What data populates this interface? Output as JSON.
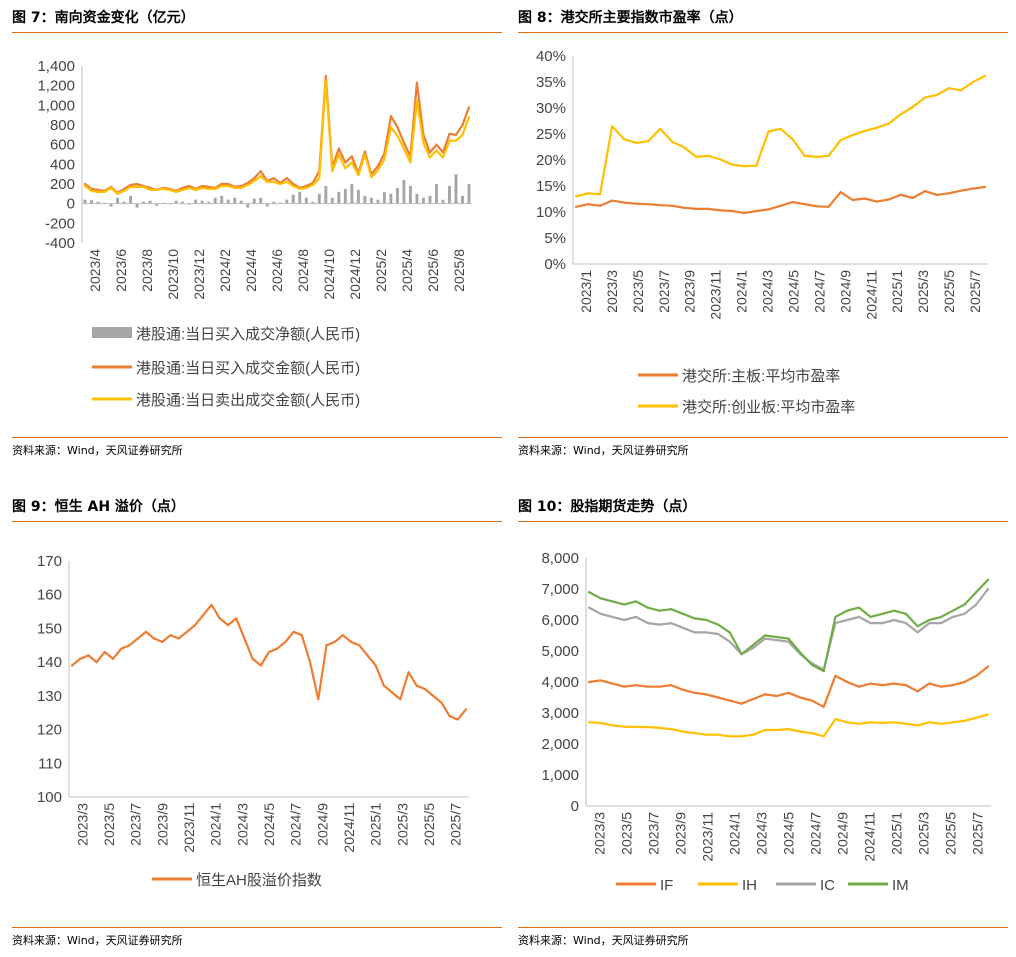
{
  "colors": {
    "accent": "#e46c0a",
    "orange": "#ed7d31",
    "yellow": "#ffc000",
    "gray": "#a6a6a6",
    "green": "#70ad47"
  },
  "fig7": {
    "title": "图 7：南向资金变化（亿元）",
    "source": "资料来源：Wind，天风证券研究所",
    "chart_data": {
      "type": "line",
      "ylim": [
        -400,
        1400
      ],
      "yticks": [
        "1,400",
        "1,200",
        "1,000",
        "800",
        "600",
        "400",
        "200",
        "0",
        "-200",
        "-400"
      ],
      "x_tick_labels": [
        "2023/4",
        "2023/6",
        "2023/8",
        "2023/10",
        "2023/12",
        "2024/2",
        "2024/4",
        "2024/6",
        "2024/8",
        "2024/10",
        "2024/12",
        "2025/2",
        "2025/4",
        "2025/6",
        "2025/8"
      ],
      "series": [
        {
          "name": "港股通:当日买入成交净额(人民币)",
          "type": "bar",
          "color": "#a6a6a6",
          "values": [
            40,
            35,
            20,
            10,
            -30,
            60,
            20,
            80,
            -40,
            20,
            30,
            -20,
            10,
            0,
            30,
            20,
            -10,
            40,
            30,
            20,
            60,
            80,
            40,
            60,
            30,
            -40,
            50,
            60,
            -30,
            20,
            10,
            40,
            90,
            120,
            60,
            20,
            100,
            180,
            60,
            120,
            150,
            200,
            140,
            80,
            60,
            40,
            120,
            100,
            160,
            240,
            180,
            100,
            60,
            80,
            200,
            40,
            180,
            300,
            80,
            200
          ]
        },
        {
          "name": "港股通:当日买入成交金额(人民币)",
          "color": "#ed7d31",
          "values": [
            200,
            150,
            140,
            130,
            170,
            110,
            150,
            190,
            200,
            180,
            160,
            140,
            160,
            150,
            130,
            160,
            180,
            150,
            180,
            170,
            160,
            200,
            200,
            170,
            180,
            210,
            260,
            330,
            230,
            260,
            210,
            260,
            200,
            160,
            180,
            210,
            330,
            1300,
            370,
            560,
            420,
            480,
            310,
            530,
            300,
            380,
            510,
            890,
            780,
            620,
            480,
            1230,
            700,
            520,
            600,
            520,
            710,
            700,
            800,
            980
          ]
        },
        {
          "name": "港股通:当日卖出成交金额(人民币)",
          "color": "#ffc000",
          "values": [
            180,
            130,
            120,
            120,
            160,
            100,
            130,
            170,
            170,
            170,
            140,
            140,
            150,
            140,
            120,
            140,
            160,
            140,
            160,
            150,
            150,
            180,
            180,
            160,
            160,
            190,
            230,
            280,
            220,
            220,
            200,
            220,
            180,
            150,
            160,
            190,
            260,
            1250,
            330,
            500,
            360,
            420,
            290,
            500,
            270,
            340,
            450,
            780,
            690,
            560,
            420,
            1050,
            620,
            470,
            540,
            470,
            640,
            640,
            700,
            880
          ]
        }
      ]
    }
  },
  "fig8": {
    "title": "图 8：港交所主要指数市盈率（点）",
    "source": "资料来源：Wind，天风证券研究所",
    "chart_data": {
      "type": "line",
      "ylim": [
        0,
        40
      ],
      "yticks": [
        "40%",
        "35%",
        "30%",
        "25%",
        "20%",
        "15%",
        "10%",
        "5%",
        "0%"
      ],
      "x_tick_labels": [
        "2023/1",
        "2023/3",
        "2023/5",
        "2023/7",
        "2023/9",
        "2023/11",
        "2024/1",
        "2024/3",
        "2024/5",
        "2024/7",
        "2024/9",
        "2024/11",
        "2025/1",
        "2025/3",
        "2025/5",
        "2025/7"
      ],
      "series": [
        {
          "name": "港交所:主板:平均市盈率",
          "color": "#ed7d31",
          "values": [
            11.0,
            11.5,
            11.2,
            12.2,
            11.8,
            11.6,
            11.5,
            11.3,
            11.2,
            10.8,
            10.6,
            10.6,
            10.3,
            10.2,
            9.8,
            10.2,
            10.5,
            11.2,
            11.9,
            11.5,
            11.1,
            11.0,
            13.8,
            12.3,
            12.6,
            12.0,
            12.4,
            13.3,
            12.7,
            14.0,
            13.3,
            13.6,
            14.1,
            14.5,
            14.8
          ]
        },
        {
          "name": "港交所:创业板:平均市盈率",
          "color": "#ffc000",
          "values": [
            13.0,
            13.6,
            13.4,
            26.5,
            24.0,
            23.3,
            23.6,
            26.0,
            23.5,
            22.4,
            20.6,
            20.8,
            20.1,
            19.1,
            18.8,
            18.9,
            25.5,
            26.0,
            24.0,
            20.8,
            20.6,
            20.8,
            23.8,
            24.8,
            25.6,
            26.2,
            27.0,
            28.8,
            30.2,
            32.0,
            32.5,
            33.8,
            33.4,
            35.0,
            36.2
          ]
        }
      ]
    }
  },
  "fig9": {
    "title": "图 9：恒生 AH 溢价（点）",
    "source": "资料来源：Wind，天风证券研究所",
    "chart_data": {
      "type": "line",
      "ylim": [
        100,
        170
      ],
      "yticks": [
        "170",
        "160",
        "150",
        "140",
        "130",
        "120",
        "110",
        "100"
      ],
      "x_tick_labels": [
        "2023/3",
        "2023/5",
        "2023/7",
        "2023/9",
        "2023/11",
        "2024/1",
        "2024/3",
        "2024/5",
        "2024/7",
        "2024/9",
        "2024/11",
        "2025/1",
        "2025/3",
        "2025/5",
        "2025/7"
      ],
      "series": [
        {
          "name": "恒生AH股溢价指数",
          "color": "#ed7d31",
          "values": [
            139,
            141,
            142,
            140,
            143,
            141,
            144,
            145,
            147,
            149,
            147,
            146,
            148,
            147,
            149,
            151,
            154,
            157,
            153,
            151,
            153,
            147,
            141,
            139,
            143,
            144,
            146,
            149,
            148,
            140,
            129,
            145,
            146,
            148,
            146,
            145,
            142,
            139,
            133,
            131,
            129,
            137,
            133,
            132,
            130,
            128,
            124,
            123,
            126
          ]
        }
      ]
    }
  },
  "fig10": {
    "title": "图 10：股指期货走势（点）",
    "source": "资料来源：Wind，天风证券研究所",
    "chart_data": {
      "type": "line",
      "ylim": [
        0,
        8000
      ],
      "yticks": [
        "8,000",
        "7,000",
        "6,000",
        "5,000",
        "4,000",
        "3,000",
        "2,000",
        "1,000",
        "0"
      ],
      "x_tick_labels": [
        "2023/3",
        "2023/5",
        "2023/7",
        "2023/9",
        "2023/11",
        "2024/1",
        "2024/3",
        "2024/5",
        "2024/7",
        "2024/9",
        "2024/11",
        "2025/1",
        "2025/3",
        "2025/5",
        "2025/7"
      ],
      "series": [
        {
          "name": "IF",
          "color": "#ed7d31",
          "values": [
            4000,
            4050,
            3950,
            3850,
            3900,
            3850,
            3850,
            3900,
            3750,
            3650,
            3600,
            3500,
            3400,
            3300,
            3450,
            3600,
            3550,
            3650,
            3500,
            3400,
            3200,
            4200,
            4000,
            3850,
            3950,
            3900,
            3950,
            3900,
            3700,
            3950,
            3850,
            3900,
            4000,
            4200,
            4500
          ]
        },
        {
          "name": "IH",
          "color": "#ffc000",
          "values": [
            2700,
            2680,
            2600,
            2560,
            2550,
            2550,
            2520,
            2480,
            2400,
            2350,
            2300,
            2300,
            2250,
            2250,
            2300,
            2450,
            2450,
            2480,
            2400,
            2350,
            2250,
            2800,
            2700,
            2650,
            2700,
            2680,
            2700,
            2650,
            2600,
            2700,
            2650,
            2700,
            2750,
            2850,
            2950
          ]
        },
        {
          "name": "IC",
          "color": "#a6a6a6",
          "values": [
            6400,
            6200,
            6100,
            6000,
            6100,
            5900,
            5850,
            5900,
            5750,
            5600,
            5600,
            5550,
            5300,
            4900,
            5100,
            5400,
            5350,
            5300,
            4900,
            4600,
            4400,
            5900,
            6000,
            6100,
            5900,
            5900,
            6000,
            5900,
            5600,
            5900,
            5900,
            6100,
            6200,
            6500,
            7000
          ]
        },
        {
          "name": "IM",
          "color": "#70ad47",
          "values": [
            6900,
            6700,
            6600,
            6500,
            6600,
            6400,
            6300,
            6350,
            6200,
            6050,
            6000,
            5850,
            5600,
            4900,
            5200,
            5500,
            5450,
            5400,
            4950,
            4550,
            4350,
            6100,
            6300,
            6400,
            6100,
            6200,
            6300,
            6200,
            5800,
            6000,
            6100,
            6300,
            6500,
            6900,
            7300
          ]
        }
      ]
    }
  }
}
